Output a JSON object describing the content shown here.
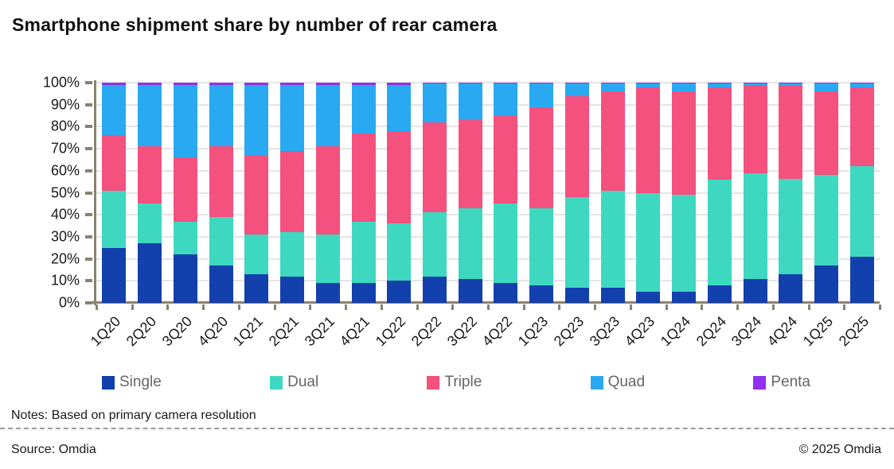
{
  "title": "Smartphone shipment share by number of rear camera",
  "notes": "Notes: Based on primary camera resolution",
  "source": "Source: Omdia",
  "copyright": "© 2025 Omdia",
  "colors": {
    "single": "#1240ad",
    "dual": "#3ed8c0",
    "triple": "#f4517e",
    "quad": "#29a9f1",
    "penta": "#9230f0",
    "axis": "#8b8170",
    "gridline": "#e4e4e4",
    "legend_text": "#666666"
  },
  "chart_data": {
    "type": "bar",
    "stacked": true,
    "units": "percent",
    "title": "Smartphone shipment share by number of rear camera",
    "xlabel": "",
    "ylabel": "",
    "ylim": [
      0,
      100
    ],
    "ytick_step": 10,
    "ytick_labels": [
      "0%",
      "10%",
      "20%",
      "30%",
      "40%",
      "50%",
      "60%",
      "70%",
      "80%",
      "90%",
      "100%"
    ],
    "grid": true,
    "legend_position": "bottom",
    "categories": [
      "1Q20",
      "2Q20",
      "3Q20",
      "4Q20",
      "1Q21",
      "2Q21",
      "3Q21",
      "4Q21",
      "1Q22",
      "2Q22",
      "3Q22",
      "4Q22",
      "1Q23",
      "2Q23",
      "3Q23",
      "4Q23",
      "1Q24",
      "2Q24",
      "3Q24",
      "4Q24",
      "1Q25",
      "2Q25"
    ],
    "series": [
      {
        "name": "Single",
        "color": "#1240ad",
        "values": [
          25,
          27,
          22,
          17,
          13,
          12,
          9,
          9,
          10,
          12,
          11,
          9,
          8,
          7,
          7,
          5,
          5,
          8,
          11,
          13,
          17,
          21
        ]
      },
      {
        "name": "Dual",
        "color": "#3ed8c0",
        "values": [
          26,
          18,
          15,
          22,
          18,
          20,
          22,
          28,
          26,
          29,
          32,
          36,
          35,
          41,
          44,
          45,
          44,
          48,
          48,
          43.5,
          41,
          41
        ]
      },
      {
        "name": "Triple",
        "color": "#f4517e",
        "values": [
          25,
          26,
          29,
          32,
          36,
          37,
          40,
          40,
          42,
          41,
          40,
          40,
          46,
          46,
          45,
          48,
          47,
          42,
          40,
          42,
          38,
          36
        ]
      },
      {
        "name": "Quad",
        "color": "#29a9f1",
        "values": [
          23,
          28,
          33,
          28,
          32,
          30,
          28,
          22,
          21,
          17.5,
          16.5,
          14.5,
          10.5,
          5.5,
          3.5,
          1.5,
          3.5,
          1.5,
          0.5,
          1,
          3.5,
          1.5
        ]
      },
      {
        "name": "Penta",
        "color": "#9230f0",
        "values": [
          1,
          1,
          1,
          1,
          1,
          1,
          1,
          1,
          1,
          0.5,
          0.5,
          0.5,
          0.5,
          0.5,
          0.5,
          0.5,
          0.5,
          0.5,
          0.5,
          0.5,
          0.5,
          0.5
        ]
      }
    ]
  }
}
